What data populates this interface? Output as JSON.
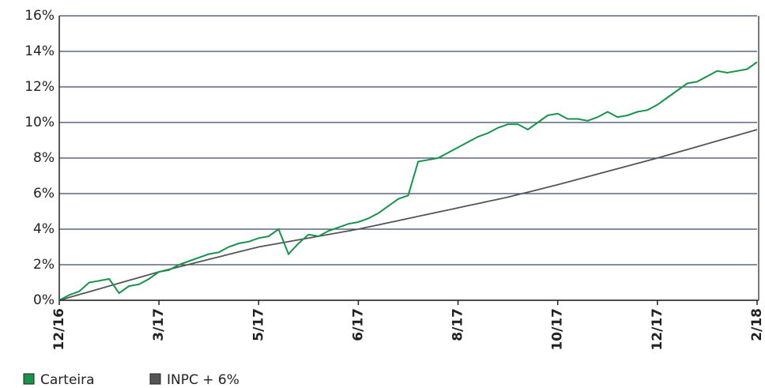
{
  "chart_data": {
    "type": "line",
    "categories": [
      "12/16",
      null,
      null,
      null,
      null,
      null,
      null,
      null,
      null,
      null,
      "3/17",
      null,
      null,
      null,
      null,
      null,
      null,
      null,
      null,
      null,
      "5/17",
      null,
      null,
      null,
      null,
      null,
      null,
      null,
      null,
      null,
      "6/17",
      null,
      null,
      null,
      null,
      null,
      null,
      null,
      null,
      null,
      "8/17",
      null,
      null,
      null,
      null,
      null,
      null,
      null,
      null,
      null,
      "10/17",
      null,
      null,
      null,
      null,
      null,
      null,
      null,
      null,
      null,
      "12/17",
      null,
      null,
      null,
      null,
      null,
      null,
      null,
      null,
      null,
      "2/18"
    ],
    "series": [
      {
        "name": "Carteira",
        "color": "#17934a",
        "values": [
          0,
          0.3,
          0.5,
          1.0,
          1.1,
          1.2,
          0.4,
          0.8,
          0.9,
          1.2,
          1.6,
          1.7,
          2.0,
          2.2,
          2.4,
          2.6,
          2.7,
          3.0,
          3.2,
          3.3,
          3.5,
          3.6,
          4.0,
          2.6,
          3.2,
          3.7,
          3.6,
          3.9,
          4.1,
          4.3,
          4.4,
          4.6,
          4.9,
          5.3,
          5.7,
          5.9,
          7.8,
          7.9,
          8.0,
          8.3,
          8.6,
          8.9,
          9.2,
          9.4,
          9.7,
          9.9,
          9.9,
          9.6,
          10.0,
          10.4,
          10.5,
          10.2,
          10.2,
          10.1,
          10.3,
          10.6,
          10.3,
          10.4,
          10.6,
          10.7,
          11.0,
          11.4,
          11.8,
          12.2,
          12.3,
          12.6,
          12.9,
          12.8,
          12.9,
          13.0,
          13.4
        ]
      },
      {
        "name": "INPC + 6%",
        "color": "#555555",
        "values": [
          0,
          0.16,
          0.32,
          0.48,
          0.64,
          0.8,
          0.96,
          1.12,
          1.28,
          1.44,
          1.6,
          1.74,
          1.88,
          2.02,
          2.16,
          2.3,
          2.44,
          2.58,
          2.72,
          2.86,
          3.0,
          3.1,
          3.2,
          3.3,
          3.4,
          3.5,
          3.6,
          3.7,
          3.8,
          3.9,
          4.0,
          4.12,
          4.24,
          4.36,
          4.48,
          4.6,
          4.72,
          4.84,
          4.96,
          5.08,
          5.2,
          5.32,
          5.44,
          5.56,
          5.68,
          5.8,
          5.94,
          6.08,
          6.22,
          6.36,
          6.5,
          6.65,
          6.8,
          6.95,
          7.1,
          7.25,
          7.4,
          7.55,
          7.7,
          7.85,
          8.0,
          8.16,
          8.32,
          8.48,
          8.64,
          8.8,
          8.96,
          9.12,
          9.28,
          9.44,
          9.6
        ]
      }
    ],
    "ylim": [
      0,
      16
    ],
    "yticks": [
      {
        "value": 0,
        "label": "0%"
      },
      {
        "value": 2,
        "label": "2%"
      },
      {
        "value": 4,
        "label": "4%"
      },
      {
        "value": 6,
        "label": "6%"
      },
      {
        "value": 8,
        "label": "8%"
      },
      {
        "value": 10,
        "label": "10%"
      },
      {
        "value": 12,
        "label": "12%"
      },
      {
        "value": 14,
        "label": "14%"
      },
      {
        "value": 16,
        "label": "16%"
      }
    ],
    "grid": true
  }
}
